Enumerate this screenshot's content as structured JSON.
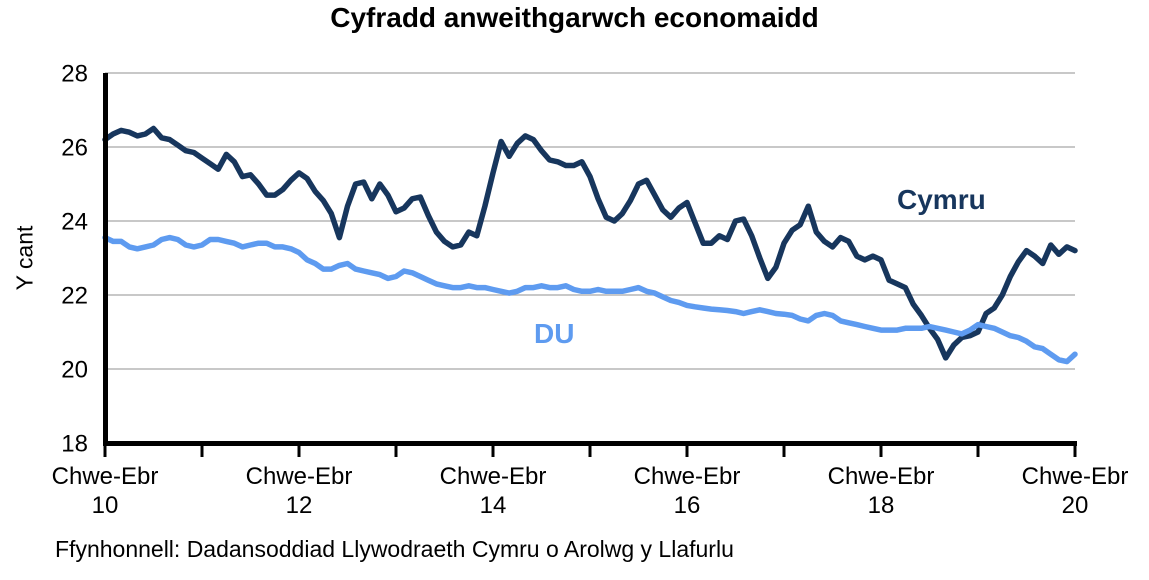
{
  "title": "Cyfradd anweithgarwch economaidd",
  "source": "Ffynhonnell: Dadansoddiad Llywodraeth Cymru o Arolwg y Llafurlu",
  "colors": {
    "cymru": "#17365D",
    "du": "#5E9BF0",
    "grid": "#A6A6A6",
    "axis": "#000000"
  },
  "chart_data": {
    "type": "line",
    "title": "Cyfradd anweithgarwch economaidd",
    "xlabel": "",
    "ylabel": "Y cant",
    "ylim": [
      18,
      28
    ],
    "y_ticks": [
      28,
      26,
      24,
      22,
      20,
      18
    ],
    "grid": "horizontal",
    "legend_position": "inline-labels",
    "x_ticks": [
      {
        "season": "Chwe-Ebr",
        "year": "10"
      },
      {
        "season": "Chwe-Ebr",
        "year": "12"
      },
      {
        "season": "Chwe-Ebr",
        "year": "14"
      },
      {
        "season": "Chwe-Ebr",
        "year": "16"
      },
      {
        "season": "Chwe-Ebr",
        "year": "18"
      },
      {
        "season": "Chwe-Ebr",
        "year": "20"
      }
    ],
    "x_minor_ticks_per_year": 1,
    "x_range_note": "monthly rolling quarters from Chwe-Ebr 2010 to Chwe-Ebr 2020",
    "series": [
      {
        "name": "Cymru",
        "color": "#17365D",
        "values": [
          26.2,
          26.35,
          26.45,
          26.4,
          26.3,
          26.35,
          26.5,
          26.25,
          26.2,
          26.05,
          25.9,
          25.85,
          25.7,
          25.55,
          25.4,
          25.8,
          25.6,
          25.2,
          25.25,
          25.0,
          24.7,
          24.7,
          24.85,
          25.1,
          25.3,
          25.15,
          24.8,
          24.55,
          24.2,
          23.55,
          24.4,
          25.0,
          25.05,
          24.6,
          25.0,
          24.7,
          24.25,
          24.35,
          24.6,
          24.65,
          24.15,
          23.7,
          23.45,
          23.3,
          23.35,
          23.7,
          23.6,
          24.4,
          25.3,
          26.15,
          25.75,
          26.1,
          26.3,
          26.2,
          25.9,
          25.65,
          25.6,
          25.5,
          25.5,
          25.6,
          25.2,
          24.6,
          24.1,
          24.0,
          24.2,
          24.55,
          25.0,
          25.1,
          24.7,
          24.3,
          24.1,
          24.35,
          24.5,
          23.95,
          23.4,
          23.4,
          23.6,
          23.5,
          24.0,
          24.05,
          23.6,
          23.0,
          22.45,
          22.75,
          23.4,
          23.75,
          23.9,
          24.4,
          23.7,
          23.45,
          23.3,
          23.55,
          23.45,
          23.05,
          22.95,
          23.05,
          22.95,
          22.4,
          22.3,
          22.2,
          21.75,
          21.45,
          21.1,
          20.8,
          20.3,
          20.65,
          20.85,
          20.9,
          21.0,
          21.5,
          21.65,
          22.0,
          22.5,
          22.9,
          23.2,
          23.05,
          22.85,
          23.35,
          23.1,
          23.3,
          23.2
        ]
      },
      {
        "name": "DU",
        "color": "#5E9BF0",
        "values": [
          23.55,
          23.45,
          23.45,
          23.3,
          23.25,
          23.3,
          23.35,
          23.5,
          23.55,
          23.5,
          23.35,
          23.3,
          23.35,
          23.5,
          23.5,
          23.45,
          23.4,
          23.3,
          23.35,
          23.4,
          23.4,
          23.3,
          23.3,
          23.25,
          23.15,
          22.95,
          22.85,
          22.7,
          22.7,
          22.8,
          22.85,
          22.7,
          22.65,
          22.6,
          22.55,
          22.45,
          22.5,
          22.65,
          22.6,
          22.5,
          22.4,
          22.3,
          22.25,
          22.2,
          22.2,
          22.25,
          22.2,
          22.2,
          22.15,
          22.1,
          22.05,
          22.1,
          22.2,
          22.2,
          22.25,
          22.2,
          22.2,
          22.25,
          22.15,
          22.1,
          22.1,
          22.15,
          22.1,
          22.1,
          22.1,
          22.15,
          22.2,
          22.1,
          22.05,
          21.95,
          21.85,
          21.8,
          21.72,
          21.68,
          21.65,
          21.62,
          21.6,
          21.58,
          21.55,
          21.5,
          21.55,
          21.6,
          21.55,
          21.5,
          21.48,
          21.45,
          21.35,
          21.3,
          21.45,
          21.5,
          21.45,
          21.3,
          21.25,
          21.2,
          21.15,
          21.1,
          21.05,
          21.05,
          21.05,
          21.1,
          21.1,
          21.1,
          21.15,
          21.1,
          21.05,
          21.0,
          20.95,
          21.05,
          21.2,
          21.15,
          21.1,
          21.0,
          20.9,
          20.85,
          20.75,
          20.6,
          20.55,
          20.4,
          20.25,
          20.2,
          20.4
        ]
      }
    ]
  }
}
